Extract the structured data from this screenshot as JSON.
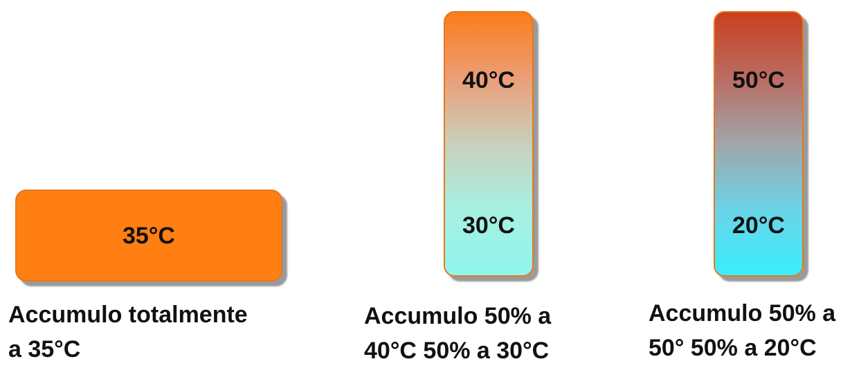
{
  "tanks": [
    {
      "id": "uniform",
      "labels": [
        "35°C"
      ],
      "caption_lines": [
        "Accumulo totalmente",
        "a 35°C"
      ],
      "fill_color": "#ff7f12"
    },
    {
      "id": "strat-1",
      "labels": [
        "40°C",
        "30°C"
      ],
      "caption_lines": [
        "Accumulo 50% a",
        "40°C 50% a 30°C"
      ],
      "gradient_top": "#fb7d1a",
      "gradient_bottom": "#8ff6ec"
    },
    {
      "id": "strat-2",
      "labels": [
        "50°C",
        "20°C"
      ],
      "caption_lines": [
        "Accumulo 50% a",
        "50° 50% a 20°C"
      ],
      "gradient_top": "#c9401f",
      "gradient_bottom": "#39eefc"
    }
  ],
  "colors": {
    "tank_border": "#e5781e",
    "shadow": "#808080",
    "text": "#111111"
  }
}
